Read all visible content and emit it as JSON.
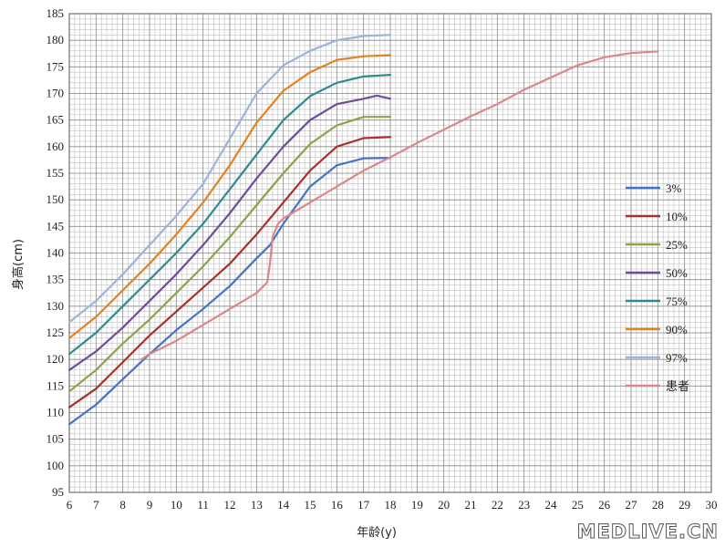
{
  "chart_data": {
    "type": "line",
    "title": "",
    "xlabel": "年龄(y)",
    "ylabel": "身高(cm)",
    "xlim": [
      6,
      30
    ],
    "ylim": [
      95,
      185
    ],
    "x_ticks": [
      6,
      7,
      8,
      9,
      10,
      11,
      12,
      13,
      14,
      15,
      16,
      17,
      18,
      19,
      20,
      21,
      22,
      23,
      24,
      25,
      26,
      27,
      28,
      29,
      30
    ],
    "y_ticks": [
      95,
      100,
      105,
      110,
      115,
      120,
      125,
      130,
      135,
      140,
      145,
      150,
      155,
      160,
      165,
      170,
      175,
      180,
      185
    ],
    "grid": true,
    "legend_position": "right",
    "series": [
      {
        "name": "3%",
        "color": "#4472c4",
        "points": [
          [
            6,
            107.8
          ],
          [
            7,
            111.5
          ],
          [
            8,
            116.3
          ],
          [
            9,
            121
          ],
          [
            10,
            125.5
          ],
          [
            11,
            129.5
          ],
          [
            12,
            133.8
          ],
          [
            13,
            139
          ],
          [
            13.5,
            141.5
          ],
          [
            14,
            145.5
          ],
          [
            15,
            152.5
          ],
          [
            16,
            156.5
          ],
          [
            17,
            157.8
          ],
          [
            18,
            157.9
          ]
        ]
      },
      {
        "name": "10%",
        "color": "#a5302e",
        "points": [
          [
            6,
            111
          ],
          [
            7,
            114.5
          ],
          [
            8,
            119.5
          ],
          [
            9,
            124.5
          ],
          [
            10,
            129
          ],
          [
            11,
            133.5
          ],
          [
            12,
            138
          ],
          [
            13,
            143.5
          ],
          [
            14,
            149.5
          ],
          [
            15,
            155.5
          ],
          [
            16,
            160
          ],
          [
            17,
            161.6
          ],
          [
            18,
            161.8
          ]
        ]
      },
      {
        "name": "25%",
        "color": "#8aa448",
        "points": [
          [
            6,
            114
          ],
          [
            7,
            118
          ],
          [
            8,
            123
          ],
          [
            9,
            127.5
          ],
          [
            10,
            132.5
          ],
          [
            11,
            137.5
          ],
          [
            12,
            143
          ],
          [
            13,
            149
          ],
          [
            14,
            155
          ],
          [
            15,
            160.5
          ],
          [
            16,
            164
          ],
          [
            17,
            165.6
          ],
          [
            18,
            165.6
          ]
        ]
      },
      {
        "name": "50%",
        "color": "#6d4d9a",
        "points": [
          [
            6,
            118
          ],
          [
            7,
            121.5
          ],
          [
            8,
            126
          ],
          [
            9,
            131
          ],
          [
            10,
            136
          ],
          [
            11,
            141.5
          ],
          [
            12,
            147.5
          ],
          [
            13,
            154
          ],
          [
            14,
            160
          ],
          [
            15,
            165
          ],
          [
            16,
            168
          ],
          [
            17,
            169
          ],
          [
            17.5,
            169.6
          ],
          [
            18,
            169
          ]
        ]
      },
      {
        "name": "75%",
        "color": "#2e8a92",
        "points": [
          [
            6,
            121
          ],
          [
            7,
            125
          ],
          [
            8,
            130
          ],
          [
            9,
            135
          ],
          [
            10,
            140
          ],
          [
            11,
            145.5
          ],
          [
            12,
            152
          ],
          [
            13,
            158.5
          ],
          [
            14,
            165
          ],
          [
            15,
            169.5
          ],
          [
            16,
            172
          ],
          [
            17,
            173.2
          ],
          [
            18,
            173.5
          ]
        ]
      },
      {
        "name": "90%",
        "color": "#e4821e",
        "points": [
          [
            6,
            124
          ],
          [
            7,
            128
          ],
          [
            8,
            133
          ],
          [
            9,
            138
          ],
          [
            10,
            143.5
          ],
          [
            11,
            149.5
          ],
          [
            12,
            156.5
          ],
          [
            13,
            164.5
          ],
          [
            14,
            170.5
          ],
          [
            15,
            174
          ],
          [
            16,
            176.3
          ],
          [
            17,
            177
          ],
          [
            18,
            177.2
          ]
        ]
      },
      {
        "name": "97%",
        "color": "#9bb4d8",
        "points": [
          [
            6,
            127
          ],
          [
            7,
            131
          ],
          [
            8,
            136
          ],
          [
            9,
            141.5
          ],
          [
            10,
            147
          ],
          [
            11,
            153
          ],
          [
            12,
            161.5
          ],
          [
            13,
            170
          ],
          [
            14,
            175.3
          ],
          [
            15,
            178
          ],
          [
            16,
            180
          ],
          [
            17,
            180.8
          ],
          [
            18,
            181
          ]
        ]
      },
      {
        "name": "患者",
        "color": "#de8589",
        "points": [
          [
            8.7,
            120
          ],
          [
            9,
            121
          ],
          [
            10,
            123.5
          ],
          [
            11,
            126.5
          ],
          [
            12,
            129.5
          ],
          [
            13,
            132.5
          ],
          [
            13.4,
            134.5
          ],
          [
            13.5,
            138
          ],
          [
            13.6,
            143
          ],
          [
            13.8,
            145.5
          ],
          [
            14,
            146.5
          ],
          [
            15,
            149.5
          ],
          [
            16,
            152.5
          ],
          [
            17,
            155.5
          ],
          [
            18,
            158
          ],
          [
            19,
            160.7
          ],
          [
            20,
            163.2
          ],
          [
            21,
            165.7
          ],
          [
            22,
            168
          ],
          [
            23,
            170.7
          ],
          [
            24,
            173
          ],
          [
            25,
            175.3
          ],
          [
            26,
            176.8
          ],
          [
            27,
            177.6
          ],
          [
            28,
            177.9
          ]
        ]
      }
    ]
  },
  "watermark": "MEDLIVE.CN"
}
